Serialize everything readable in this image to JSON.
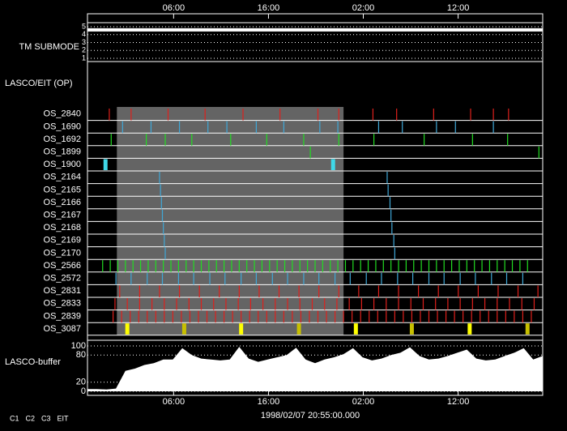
{
  "chart_data": {
    "type": "timeline",
    "xlim": [
      0,
      48
    ],
    "xticks": [
      {
        "value": 9.083,
        "label": "06:00"
      },
      {
        "value": 19.083,
        "label": "16:00"
      },
      {
        "value": 29.083,
        "label": "02:00"
      },
      {
        "value": 39.083,
        "label": "12:00"
      }
    ],
    "start_label": "1998/02/07 20:55:00.000",
    "submode": {
      "label": "TM SUBMODE",
      "ylim": [
        1,
        5
      ],
      "yticks": [
        1,
        2,
        3,
        4,
        5
      ],
      "level": 4.6
    },
    "op_label": "LASCO/EIT (OP)",
    "shaded": [
      3.1,
      27.0
    ],
    "rows": [
      {
        "name": "OS_2840",
        "color": "#e0201c",
        "times": [
          2.3,
          4.6,
          8.5,
          12.4,
          16.4,
          20.3,
          24.3,
          26.5,
          30.1,
          32.6,
          36.5,
          40.4,
          42.8,
          44.4
        ]
      },
      {
        "name": "OS_1690",
        "color": "#3fa8d8",
        "times": [
          3.7,
          6.7,
          9.7,
          12.7,
          14.7,
          17.8,
          20.7,
          24.5,
          26.4,
          30.7,
          33.2,
          36.8,
          38.8,
          42.8
        ]
      },
      {
        "name": "OS_1692",
        "color": "#22dd22",
        "times": [
          2.5,
          6.2,
          8.2,
          11.0,
          15.1,
          18.9,
          22.8,
          26.5,
          30.2,
          35.5,
          40.6,
          44.3
        ]
      },
      {
        "name": "OS_1899",
        "color": "#22dd22",
        "times": [
          23.5,
          47.6
        ]
      },
      {
        "name": "OS_1900",
        "color": "#3fd8e8",
        "block": true,
        "times": [
          1.9,
          25.9
        ]
      },
      {
        "name": "OS_2164",
        "color": "#3fa8d8",
        "times": [
          7.6,
          31.6
        ]
      },
      {
        "name": "OS_2165",
        "color": "#3fa8d8",
        "times": [
          7.7,
          31.7
        ]
      },
      {
        "name": "OS_2166",
        "color": "#3fa8d8",
        "times": [
          7.8,
          31.9
        ]
      },
      {
        "name": "OS_2167",
        "color": "#3fa8d8",
        "times": [
          7.9,
          32.0
        ]
      },
      {
        "name": "OS_2168",
        "color": "#3fa8d8",
        "times": [
          8.0,
          32.1
        ]
      },
      {
        "name": "OS_2169",
        "color": "#3fa8d8",
        "times": [
          8.1,
          32.3
        ]
      },
      {
        "name": "OS_2170",
        "color": "#3fa8d8",
        "times": [
          8.2,
          32.4
        ]
      },
      {
        "name": "OS_2566",
        "color": "#22dd22",
        "times": [
          1.6,
          2.4,
          3.2,
          4.0,
          4.8,
          5.6,
          6.4,
          7.2,
          8.0,
          8.8,
          9.6,
          10.4,
          11.2,
          12.0,
          12.8,
          13.6,
          14.4,
          15.2,
          16.0,
          16.8,
          17.6,
          18.4,
          19.2,
          20.0,
          20.8,
          21.6,
          22.4,
          23.2,
          24.0,
          24.8,
          25.6,
          26.4,
          27.2,
          28.0,
          28.8,
          29.6,
          30.4,
          31.2,
          32.0,
          32.8,
          33.6,
          34.4,
          35.2,
          36.0,
          36.8,
          37.6,
          38.4,
          39.2,
          40.0,
          40.8,
          41.6,
          42.4,
          43.2,
          44.0,
          44.8,
          45.6,
          46.4
        ]
      },
      {
        "name": "OS_2572",
        "color": "#3fa8d8",
        "times": [
          3.0,
          4.6,
          6.3,
          7.9,
          9.6,
          11.2,
          12.9,
          14.5,
          16.2,
          17.8,
          19.5,
          21.1,
          22.8,
          24.4,
          26.1,
          27.7,
          29.4,
          31.0,
          32.7,
          34.3,
          36.0,
          37.6,
          39.3,
          40.9,
          42.6,
          44.2,
          45.9
        ]
      },
      {
        "name": "OS_2831",
        "color": "#e0201c",
        "times": [
          3.4,
          5.5,
          7.6,
          9.7,
          11.8,
          13.9,
          16.0,
          18.1,
          20.2,
          22.3,
          24.4,
          26.5,
          28.6,
          30.7,
          32.8,
          34.9,
          37.0,
          39.1,
          41.2,
          43.3,
          45.4,
          47.5
        ]
      },
      {
        "name": "OS_2833",
        "color": "#e0201c",
        "times": [
          2.9,
          4.2,
          5.5,
          6.8,
          8.1,
          9.4,
          10.7,
          12.0,
          13.3,
          14.6,
          15.9,
          17.2,
          18.5,
          19.8,
          21.1,
          22.4,
          23.7,
          25.0,
          26.3,
          27.6,
          28.9,
          30.2,
          31.5,
          32.8,
          34.1,
          35.4,
          36.7,
          38.0,
          39.3,
          40.6,
          41.9,
          43.2,
          44.5,
          45.8,
          47.1
        ]
      },
      {
        "name": "OS_2839",
        "color": "#e0201c",
        "times": [
          2.7,
          3.6,
          4.5,
          5.4,
          6.3,
          7.2,
          8.1,
          9.0,
          9.9,
          10.8,
          11.7,
          12.6,
          13.5,
          14.4,
          15.3,
          16.2,
          17.1,
          18.0,
          18.9,
          19.8,
          20.7,
          21.6,
          22.5,
          23.4,
          24.3,
          25.2,
          26.1,
          27.0,
          27.9,
          28.8,
          29.7,
          30.6,
          31.5,
          32.4,
          33.3,
          34.2,
          35.1,
          36.0,
          36.9,
          37.8,
          38.7,
          39.6,
          40.5,
          41.4,
          42.3,
          43.2,
          44.1,
          45.0,
          45.9,
          46.8
        ]
      },
      {
        "name": "OS_3087",
        "color": "#ffff00",
        "block": true,
        "colors": [
          "#ffff00",
          "#c8c000",
          "#ffff00",
          "#c8c000",
          "#ffff00",
          "#c8c000",
          "#ffff00",
          "#c8c000"
        ],
        "times": [
          4.2,
          10.2,
          16.2,
          22.3,
          28.3,
          34.2,
          40.3,
          46.4
        ]
      }
    ],
    "buffer": {
      "label": "LASCO-buffer",
      "ylim": [
        0,
        100
      ],
      "yticks": [
        0,
        20,
        80,
        100
      ],
      "color": "#ffffff",
      "x": [
        0,
        1,
        2,
        3,
        4,
        5,
        6,
        7,
        8,
        9,
        10,
        11,
        12,
        13,
        14,
        15,
        16,
        17,
        18,
        19,
        20,
        21,
        22,
        23,
        24,
        25,
        26,
        27,
        28,
        29,
        30,
        31,
        32,
        33,
        34,
        35,
        36,
        37,
        38,
        39,
        40,
        41,
        42,
        43,
        44,
        45,
        46,
        47,
        48
      ],
      "values": [
        5,
        5,
        4,
        6,
        45,
        50,
        58,
        62,
        70,
        70,
        95,
        80,
        72,
        70,
        68,
        70,
        98,
        72,
        65,
        70,
        75,
        80,
        96,
        70,
        62,
        70,
        75,
        82,
        95,
        75,
        68,
        72,
        80,
        85,
        97,
        78,
        70,
        72,
        78,
        85,
        92,
        72,
        68,
        70,
        78,
        85,
        95,
        70,
        78
      ]
    },
    "legend": [
      {
        "name": "C1",
        "color": "#e0201c"
      },
      {
        "name": "C2",
        "color": "#22dd22"
      },
      {
        "name": "C3",
        "color": "#ffffff"
      },
      {
        "name": "EIT",
        "color": "#ffffff"
      }
    ]
  }
}
